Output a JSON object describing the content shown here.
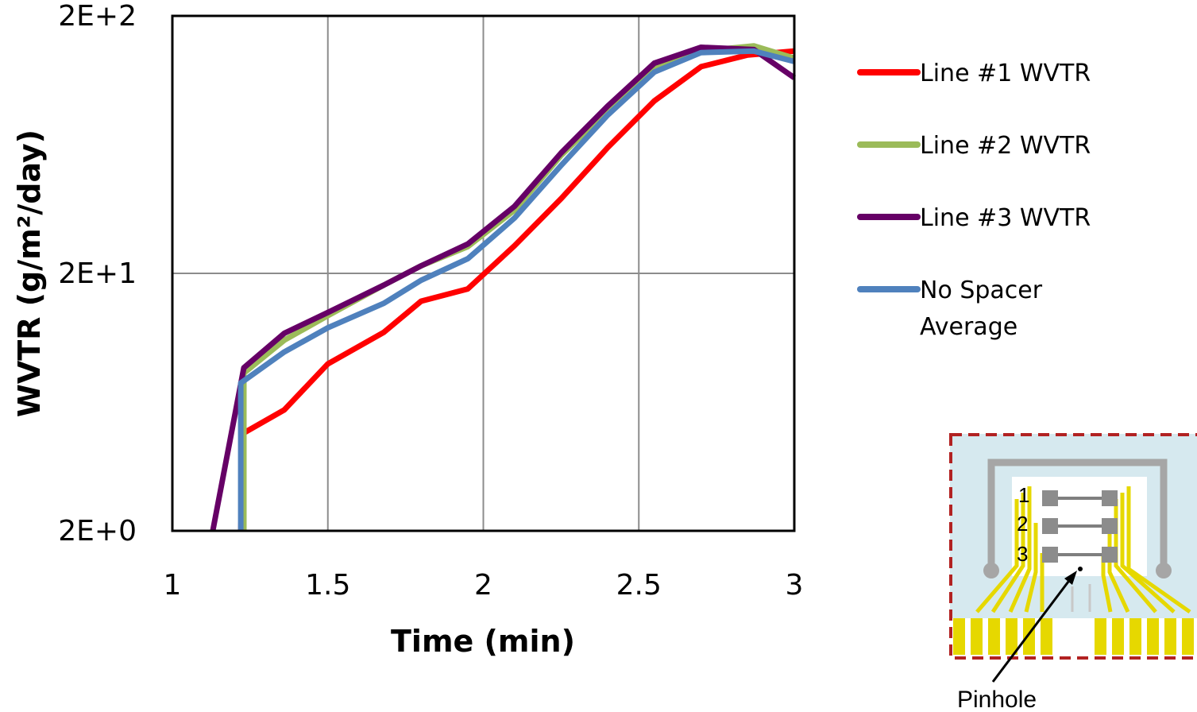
{
  "chart_data": {
    "type": "line",
    "title": "",
    "xlabel": "Time (min)",
    "ylabel": "WVTR (g/m²/day)",
    "xlim": [
      1,
      3
    ],
    "xticks": [
      1,
      1.5,
      2,
      2.5,
      3
    ],
    "xtick_labels": [
      "1",
      "1.5",
      "2",
      "2.5",
      "3"
    ],
    "ylim": [
      2,
      200
    ],
    "yscale": "log",
    "yticks": [
      2,
      20,
      200
    ],
    "ytick_labels": [
      "2E+0",
      "2E+1",
      "2E+2"
    ],
    "grid": true,
    "legend_position": "right",
    "series": [
      {
        "name": "Line #1 WVTR",
        "color": "#ff0000",
        "x": [
          1.22,
          1.23,
          1.36,
          1.5,
          1.68,
          1.8,
          1.95,
          2.1,
          2.25,
          2.4,
          2.55,
          2.7,
          2.85,
          3.0
        ],
        "y": [
          2,
          4.8,
          5.9,
          8.9,
          11.8,
          15.6,
          17.4,
          25.6,
          39.0,
          61.6,
          93.5,
          127,
          141,
          146
        ]
      },
      {
        "name": "Line #2 WVTR",
        "color": "#9bbb59",
        "x": [
          1.23,
          1.23,
          1.36,
          1.5,
          1.68,
          1.8,
          1.95,
          2.1,
          2.25,
          2.4,
          2.55,
          2.7,
          2.87,
          3.0
        ],
        "y": [
          2,
          8.2,
          11.0,
          13.7,
          18.0,
          21.4,
          25.4,
          35.2,
          57.4,
          86.2,
          127,
          146,
          153,
          137
        ]
      },
      {
        "name": "Line #3 WVTR",
        "color": "#660066",
        "x": [
          1.13,
          1.23,
          1.36,
          1.5,
          1.68,
          1.8,
          1.95,
          2.1,
          2.25,
          2.4,
          2.55,
          2.7,
          2.87,
          3.0
        ],
        "y": [
          2,
          8.6,
          11.7,
          14.1,
          18.0,
          21.4,
          26.0,
          36.4,
          58.7,
          89.3,
          131,
          151,
          148,
          115
        ]
      },
      {
        "name": "No Spacer Average",
        "color": "#4f81bd",
        "x": [
          1.22,
          1.22,
          1.36,
          1.5,
          1.68,
          1.8,
          1.95,
          2.1,
          2.25,
          2.4,
          2.55,
          2.7,
          2.87,
          3.0
        ],
        "y": [
          2,
          7.5,
          9.9,
          12.3,
          15.3,
          18.8,
          22.8,
          32.8,
          52.5,
          82.4,
          121,
          144,
          146,
          133
        ]
      }
    ]
  },
  "inset": {
    "row_labels": [
      "1",
      "2",
      "3"
    ],
    "caption": "Pinhole"
  }
}
